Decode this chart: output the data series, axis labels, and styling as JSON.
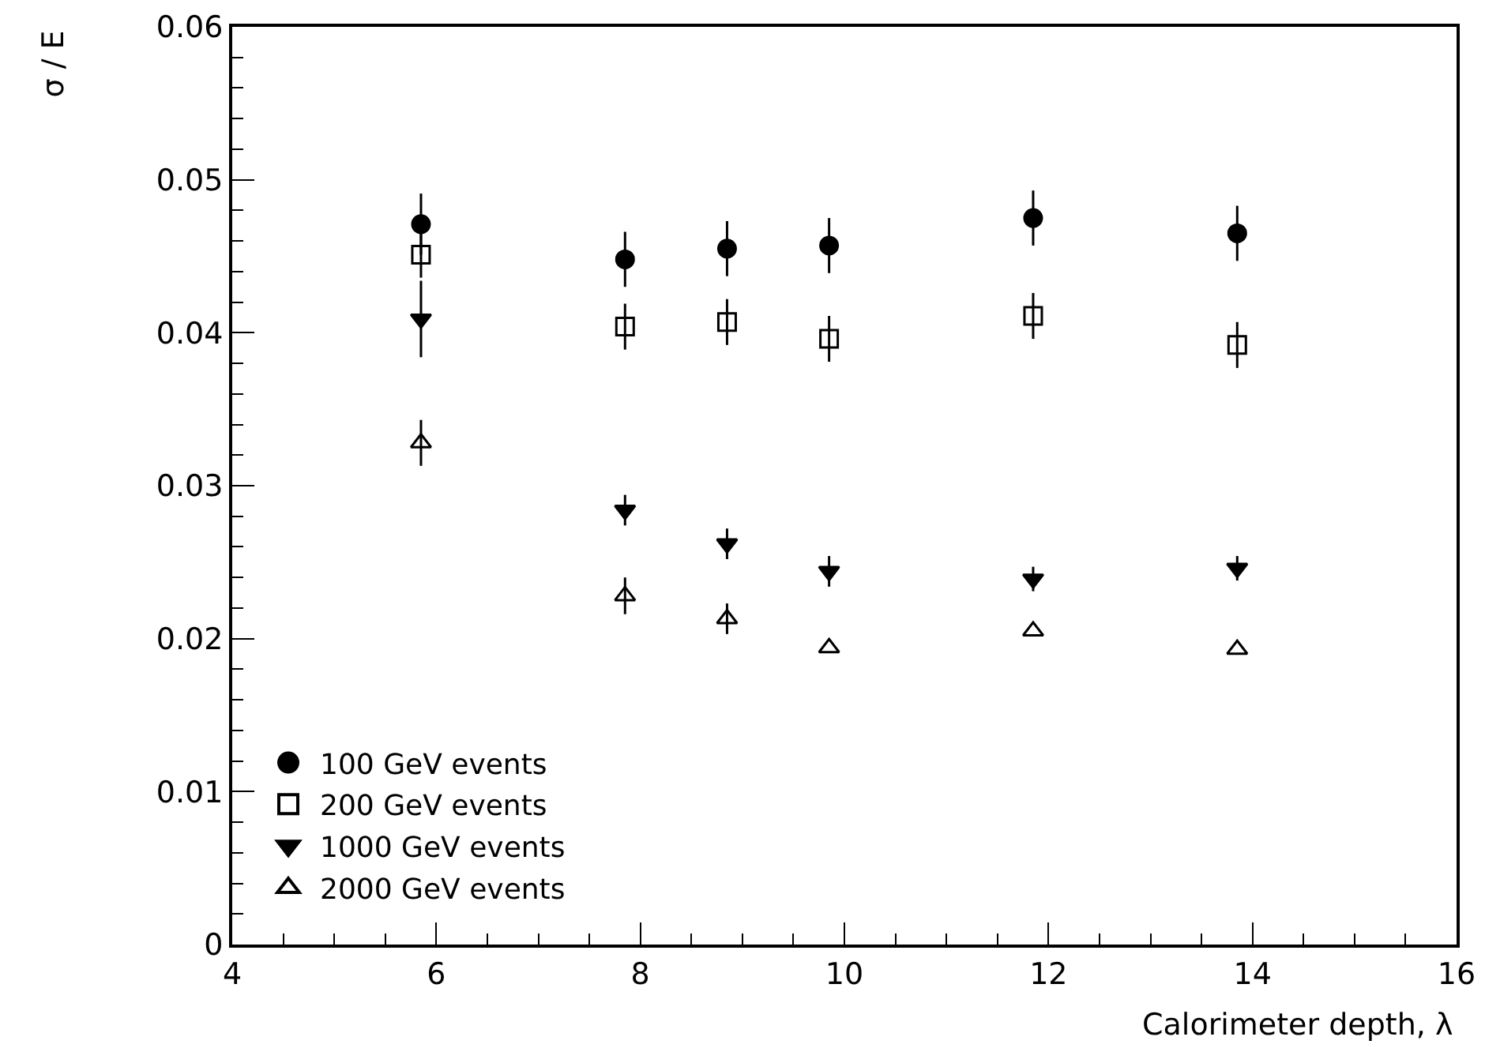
{
  "chart_data": {
    "type": "scatter",
    "xlabel": "Calorimeter depth, λ",
    "ylabel": "σ / E",
    "x": [
      5.85,
      7.85,
      8.85,
      9.85,
      11.85,
      13.85
    ],
    "series": [
      {
        "name": "100 GeV events",
        "color": "#000000",
        "marker": "circle",
        "values": [
          0.0471,
          0.0448,
          0.0455,
          0.0457,
          0.0475,
          0.0465
        ],
        "errors": [
          0.002,
          0.0018,
          0.0018,
          0.0018,
          0.0018,
          0.0018
        ]
      },
      {
        "name": "200 GeV events",
        "color": "#000000",
        "marker": "square-open",
        "values": [
          0.0451,
          0.0404,
          0.0407,
          0.0396,
          0.0411,
          0.0392
        ],
        "errors": [
          0.0015,
          0.0015,
          0.0015,
          0.0015,
          0.0015,
          0.0015
        ]
      },
      {
        "name": "1000 GeV events",
        "color": "#000000",
        "marker": "triangle-down",
        "values": [
          0.0409,
          0.0284,
          0.0262,
          0.0244,
          0.0239,
          0.0246
        ],
        "errors": [
          0.0025,
          0.001,
          0.001,
          0.001,
          0.0008,
          0.0008
        ]
      },
      {
        "name": "2000 GeV events",
        "color": "#000000",
        "marker": "triangle-up-open",
        "values": [
          0.0328,
          0.0228,
          0.0213,
          0.0194,
          0.0205,
          0.0193
        ],
        "errors": [
          0.0015,
          0.0012,
          0.001,
          null,
          null,
          null
        ]
      }
    ],
    "xlim": [
      4,
      16
    ],
    "xticks": [
      4,
      6,
      8,
      10,
      12,
      14,
      16
    ],
    "ylim": [
      0,
      0.06
    ],
    "yticks": [
      0,
      0.01,
      0.02,
      0.03,
      0.04,
      0.05,
      0.06
    ],
    "grid": false,
    "legend": "bottom left"
  }
}
